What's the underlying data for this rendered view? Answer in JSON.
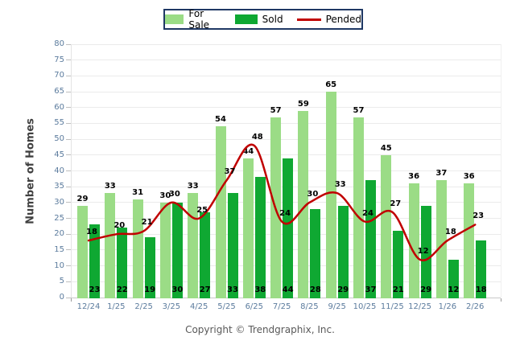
{
  "legend": {
    "items": [
      {
        "label": "For Sale",
        "color": "#9bdc86",
        "swatch": "square"
      },
      {
        "label": "Sold",
        "color": "#0fa832",
        "swatch": "square"
      },
      {
        "label": "Pended",
        "color": "#c00000",
        "swatch": "line"
      }
    ]
  },
  "y_axis": {
    "title": "Number of Homes"
  },
  "footer": {
    "copyright": "Copyright © Trendgraphix, Inc."
  },
  "colors": {
    "for_sale_bar": "#9bdc86",
    "sold_bar": "#0fa832",
    "pended_line": "#c00000",
    "gridline": "#ebebeb",
    "tick_label": "#5b7b9d",
    "value_label": "#000000",
    "legend_border": "#1f3864",
    "axis_title": "#404040",
    "copyright_text": "#595959"
  },
  "chart_data": {
    "type": "bar",
    "subtype": "grouped bars with smooth overlay line",
    "title": "",
    "xlabel": "",
    "ylabel": "Number of Homes",
    "ylim": [
      0,
      80
    ],
    "ytick_step": 5,
    "grid": "horizontal only",
    "legend_position": "top-center",
    "value_labels": true,
    "categories": [
      "12/24",
      "1/25",
      "2/25",
      "3/25",
      "4/25",
      "5/25",
      "6/25",
      "7/25",
      "8/25",
      "9/25",
      "10/25",
      "11/25",
      "12/25",
      "1/26",
      "2/26"
    ],
    "series": [
      {
        "name": "For Sale",
        "type": "bar",
        "color": "#9bdc86",
        "values": [
          29,
          33,
          31,
          30,
          33,
          54,
          44,
          57,
          59,
          65,
          57,
          45,
          36,
          37,
          36
        ]
      },
      {
        "name": "Sold",
        "type": "bar",
        "color": "#0fa832",
        "values": [
          23,
          22,
          19,
          30,
          27,
          33,
          38,
          44,
          28,
          29,
          37,
          21,
          29,
          12,
          18
        ]
      },
      {
        "name": "Pended",
        "type": "line",
        "color": "#c00000",
        "values": [
          18,
          20,
          21,
          30,
          25,
          37,
          48,
          24,
          30,
          33,
          24,
          27,
          12,
          18,
          23
        ]
      }
    ]
  }
}
